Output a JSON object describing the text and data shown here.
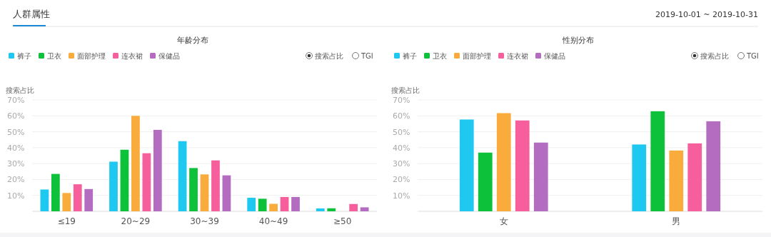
{
  "chart_data": [
    {
      "type": "bar",
      "title": "年龄分布",
      "ylabel": "搜索占比",
      "categories": [
        "≤19",
        "20~29",
        "30~39",
        "40~49",
        "≥50"
      ],
      "series": [
        {
          "name": "裤子",
          "color": "#1ec8f0",
          "values": [
            13.7,
            31.2,
            44.1,
            8.5,
            1.8
          ]
        },
        {
          "name": "卫衣",
          "color": "#0dc13a",
          "values": [
            23.5,
            38.7,
            27.2,
            7.9,
            1.9
          ]
        },
        {
          "name": "面部护理",
          "color": "#f9ab3c",
          "values": [
            11.5,
            60,
            23.2,
            4.7,
            0
          ]
        },
        {
          "name": "连衣裙",
          "color": "#f75f9c",
          "values": [
            17,
            36.5,
            32,
            9,
            4.6
          ]
        },
        {
          "name": "保健品",
          "color": "#b36cc0",
          "values": [
            14,
            51.2,
            22.6,
            9,
            2.5
          ]
        }
      ],
      "ylim": [
        0,
        70
      ],
      "yticks": [
        {
          "value": 0,
          "label": null
        },
        {
          "value": 10,
          "label": "10%"
        },
        {
          "value": 20,
          "label": "20%"
        },
        {
          "value": 30,
          "label": "30%"
        },
        {
          "value": 40,
          "label": "40%"
        },
        {
          "value": 50,
          "label": "50%"
        },
        {
          "value": 60,
          "label": "60%"
        },
        {
          "value": 70,
          "label": "70%"
        }
      ],
      "grid": "y",
      "legend": "top left",
      "annotations": [
        "人群属性",
        "2019-10-01 ~ 2019-10-31",
        "搜索占比",
        "TGI"
      ]
    },
    {
      "type": "bar",
      "title": "性别分布",
      "ylabel": "搜索占比",
      "categories": [
        "女",
        "男"
      ],
      "series": [
        {
          "name": "裤子",
          "color": "#1ec8f0",
          "values": [
            57.7,
            42
          ]
        },
        {
          "name": "卫衣",
          "color": "#0dc13a",
          "values": [
            36.9,
            62.9
          ]
        },
        {
          "name": "面部护理",
          "color": "#f9ab3c",
          "values": [
            61.7,
            38.2
          ]
        },
        {
          "name": "连衣裙",
          "color": "#f75f9c",
          "values": [
            57.1,
            42.7
          ]
        },
        {
          "name": "保健品",
          "color": "#b36cc0",
          "values": [
            43.2,
            56.6
          ]
        }
      ],
      "ylim": [
        0,
        70
      ],
      "yticks": [
        {
          "value": 0,
          "label": null
        },
        {
          "value": 10,
          "label": "10%"
        },
        {
          "value": 20,
          "label": "20%"
        },
        {
          "value": 30,
          "label": "30%"
        },
        {
          "value": 40,
          "label": "40%"
        },
        {
          "value": 50,
          "label": "50%"
        },
        {
          "value": 60,
          "label": "60%"
        },
        {
          "value": 70,
          "label": "70%"
        }
      ],
      "grid": "y",
      "legend": "top left",
      "annotations": [
        "搜索占比",
        "TGI"
      ]
    }
  ]
}
